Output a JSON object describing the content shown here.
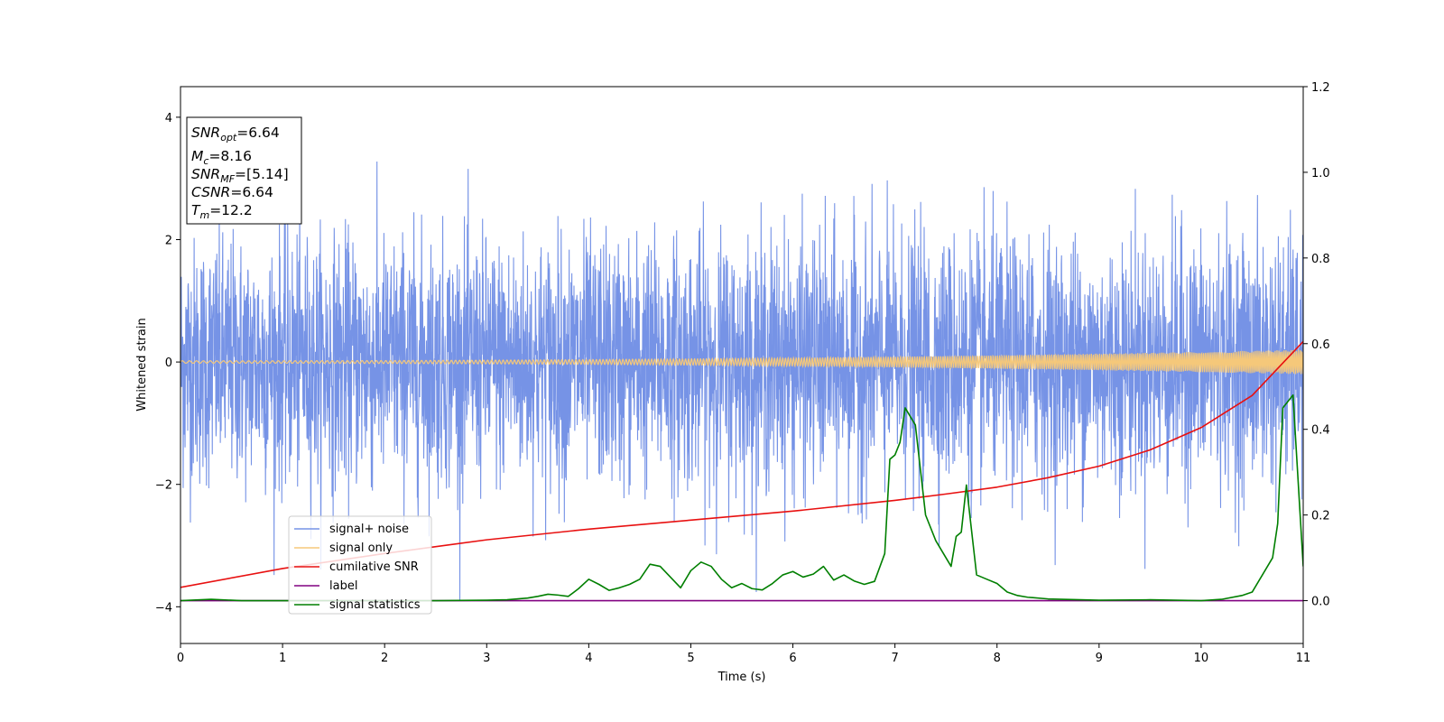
{
  "chart_data": {
    "type": "line",
    "xlabel": "Time (s)",
    "ylabel": "Whitened strain",
    "xlim": [
      0,
      11
    ],
    "ylim_left": [
      -4.6,
      4.5
    ],
    "ylim_right": [
      -0.1,
      1.2
    ],
    "x_ticks": [
      "0",
      "1",
      "2",
      "3",
      "4",
      "5",
      "6",
      "7",
      "8",
      "9",
      "10",
      "11"
    ],
    "y_left_ticks": [
      "4",
      "2",
      "0",
      "−2",
      "−4"
    ],
    "y_left_tick_values": [
      4,
      2,
      0,
      -2,
      -4
    ],
    "y_right_ticks": [
      "1.2",
      "1.0",
      "0.8",
      "0.6",
      "0.4",
      "0.2",
      "0.0"
    ],
    "y_right_tick_values": [
      1.2,
      1.0,
      0.8,
      0.6,
      0.4,
      0.2,
      0.0
    ],
    "grid": false,
    "legend_position": "lower-left",
    "info_box": {
      "snr_opt": {
        "base": "SNR",
        "sub": "opt",
        "value": "=6.64"
      },
      "mc": {
        "base": "M",
        "sub": "c",
        "value": "=8.16"
      },
      "snr_mf": {
        "base": "SNR",
        "sub": "MF",
        "value": "=[5.14]"
      },
      "csnr": {
        "base": "CSNR",
        "value": "=6.64"
      },
      "tm": {
        "base": "T",
        "sub": "m",
        "value": "=12.2"
      }
    },
    "series": [
      {
        "name": "signal+ noise",
        "color": "#7693e6",
        "axis": "left",
        "kind": "noise",
        "band_min": -3.9,
        "band_max": 4.1
      },
      {
        "name": "signal only",
        "color": "#f5c87a",
        "axis": "left",
        "kind": "chirp",
        "amplitude_start": 0.02,
        "amplitude_end": 0.2
      },
      {
        "name": "cumilative SNR",
        "color": "#e81010",
        "axis": "right",
        "x": [
          0,
          1,
          2,
          3,
          4,
          5,
          6,
          7,
          7.5,
          8,
          8.5,
          9,
          9.5,
          10,
          10.5,
          11
        ],
        "y": [
          0.031,
          0.075,
          0.11,
          0.142,
          0.167,
          0.188,
          0.209,
          0.234,
          0.249,
          0.265,
          0.287,
          0.314,
          0.352,
          0.404,
          0.479,
          0.605
        ]
      },
      {
        "name": "label",
        "color": "#800080",
        "axis": "right",
        "x": [
          0,
          11
        ],
        "y": [
          0,
          0
        ]
      },
      {
        "name": "signal statistics",
        "color": "#007f00",
        "axis": "right",
        "x": [
          0,
          0.3,
          0.6,
          1,
          1.5,
          2,
          2.5,
          3,
          3.2,
          3.4,
          3.5,
          3.6,
          3.7,
          3.8,
          3.9,
          4.0,
          4.1,
          4.2,
          4.3,
          4.4,
          4.5,
          4.6,
          4.7,
          4.8,
          4.9,
          5.0,
          5.1,
          5.2,
          5.3,
          5.4,
          5.5,
          5.6,
          5.7,
          5.8,
          5.9,
          6.0,
          6.1,
          6.2,
          6.3,
          6.4,
          6.5,
          6.6,
          6.7,
          6.8,
          6.9,
          6.95,
          7.0,
          7.05,
          7.1,
          7.15,
          7.2,
          7.3,
          7.4,
          7.5,
          7.55,
          7.6,
          7.65,
          7.7,
          7.8,
          7.9,
          8.0,
          8.1,
          8.2,
          8.3,
          8.5,
          9.0,
          9.5,
          10.0,
          10.2,
          10.4,
          10.5,
          10.6,
          10.7,
          10.75,
          10.8,
          10.9,
          11.0
        ],
        "y": [
          0.0,
          0.003,
          0.0,
          0.0,
          0.0,
          0.0,
          0.0,
          0.001,
          0.002,
          0.006,
          0.01,
          0.015,
          0.013,
          0.01,
          0.028,
          0.05,
          0.038,
          0.024,
          0.03,
          0.038,
          0.05,
          0.085,
          0.08,
          0.055,
          0.03,
          0.07,
          0.09,
          0.08,
          0.05,
          0.03,
          0.04,
          0.028,
          0.025,
          0.04,
          0.06,
          0.068,
          0.055,
          0.062,
          0.08,
          0.048,
          0.06,
          0.046,
          0.038,
          0.045,
          0.11,
          0.33,
          0.34,
          0.37,
          0.45,
          0.43,
          0.41,
          0.2,
          0.14,
          0.1,
          0.08,
          0.15,
          0.16,
          0.27,
          0.06,
          0.05,
          0.04,
          0.02,
          0.012,
          0.008,
          0.004,
          0.001,
          0.002,
          0.0,
          0.003,
          0.012,
          0.02,
          0.06,
          0.1,
          0.18,
          0.45,
          0.48,
          0.08
        ]
      }
    ]
  }
}
